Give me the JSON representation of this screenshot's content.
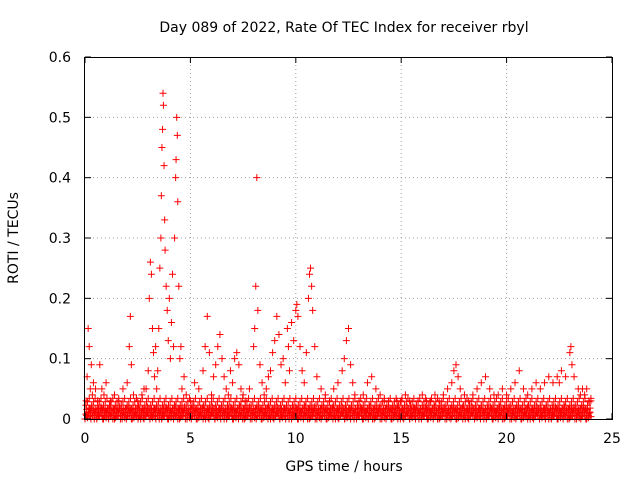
{
  "chart_data": {
    "type": "scatter",
    "title": "Day 089 of 2022, Rate Of TEC Index for receiver rbyl",
    "xlabel": "GPS time / hours",
    "ylabel": "ROTI / TECUs",
    "xlim": [
      0,
      25
    ],
    "ylim": [
      0,
      0.6
    ],
    "xticks": [
      "0",
      "5",
      "10",
      "15",
      "20",
      "25"
    ],
    "yticks": [
      "0",
      "0.1",
      "0.2",
      "0.3",
      "0.4",
      "0.5",
      "0.6"
    ],
    "grid": true,
    "marker": "+",
    "color": "#ff0000",
    "series": [
      {
        "name": "ROTI",
        "points": [
          [
            0.05,
            0.03
          ],
          [
            0.1,
            0.07
          ],
          [
            0.15,
            0.15
          ],
          [
            0.2,
            0.12
          ],
          [
            0.25,
            0.05
          ],
          [
            0.3,
            0.09
          ],
          [
            0.35,
            0.04
          ],
          [
            0.4,
            0.06
          ],
          [
            0.5,
            0.05
          ],
          [
            0.6,
            0.03
          ],
          [
            0.7,
            0.09
          ],
          [
            0.8,
            0.05
          ],
          [
            0.9,
            0.04
          ],
          [
            1.0,
            0.06
          ],
          [
            1.2,
            0.03
          ],
          [
            1.4,
            0.04
          ],
          [
            1.6,
            0.03
          ],
          [
            1.8,
            0.05
          ],
          [
            2.0,
            0.06
          ],
          [
            2.1,
            0.12
          ],
          [
            2.15,
            0.17
          ],
          [
            2.2,
            0.09
          ],
          [
            2.3,
            0.04
          ],
          [
            2.5,
            0.03
          ],
          [
            2.7,
            0.04
          ],
          [
            2.8,
            0.05
          ],
          [
            2.9,
            0.05
          ],
          [
            3.0,
            0.08
          ],
          [
            3.05,
            0.2
          ],
          [
            3.1,
            0.26
          ],
          [
            3.15,
            0.24
          ],
          [
            3.2,
            0.15
          ],
          [
            3.25,
            0.11
          ],
          [
            3.3,
            0.07
          ],
          [
            3.35,
            0.12
          ],
          [
            3.4,
            0.05
          ],
          [
            3.45,
            0.08
          ],
          [
            3.5,
            0.15
          ],
          [
            3.55,
            0.25
          ],
          [
            3.6,
            0.3
          ],
          [
            3.62,
            0.37
          ],
          [
            3.65,
            0.45
          ],
          [
            3.68,
            0.48
          ],
          [
            3.7,
            0.54
          ],
          [
            3.72,
            0.52
          ],
          [
            3.75,
            0.42
          ],
          [
            3.78,
            0.33
          ],
          [
            3.8,
            0.28
          ],
          [
            3.85,
            0.22
          ],
          [
            3.9,
            0.18
          ],
          [
            3.95,
            0.13
          ],
          [
            4.0,
            0.2
          ],
          [
            4.05,
            0.1
          ],
          [
            4.1,
            0.16
          ],
          [
            4.15,
            0.24
          ],
          [
            4.2,
            0.12
          ],
          [
            4.25,
            0.3
          ],
          [
            4.3,
            0.4
          ],
          [
            4.32,
            0.43
          ],
          [
            4.35,
            0.5
          ],
          [
            4.38,
            0.47
          ],
          [
            4.4,
            0.36
          ],
          [
            4.45,
            0.22
          ],
          [
            4.5,
            0.1
          ],
          [
            4.55,
            0.12
          ],
          [
            4.6,
            0.05
          ],
          [
            4.7,
            0.07
          ],
          [
            4.8,
            0.04
          ],
          [
            5.0,
            0.03
          ],
          [
            5.2,
            0.06
          ],
          [
            5.4,
            0.05
          ],
          [
            5.6,
            0.08
          ],
          [
            5.7,
            0.12
          ],
          [
            5.8,
            0.17
          ],
          [
            5.9,
            0.11
          ],
          [
            6.0,
            0.04
          ],
          [
            6.1,
            0.07
          ],
          [
            6.2,
            0.09
          ],
          [
            6.3,
            0.12
          ],
          [
            6.4,
            0.14
          ],
          [
            6.5,
            0.1
          ],
          [
            6.6,
            0.07
          ],
          [
            6.7,
            0.05
          ],
          [
            6.8,
            0.04
          ],
          [
            6.9,
            0.08
          ],
          [
            7.0,
            0.06
          ],
          [
            7.1,
            0.1
          ],
          [
            7.2,
            0.11
          ],
          [
            7.3,
            0.09
          ],
          [
            7.4,
            0.05
          ],
          [
            7.5,
            0.04
          ],
          [
            7.6,
            0.03
          ],
          [
            7.8,
            0.05
          ],
          [
            8.0,
            0.12
          ],
          [
            8.05,
            0.15
          ],
          [
            8.1,
            0.22
          ],
          [
            8.15,
            0.4
          ],
          [
            8.2,
            0.18
          ],
          [
            8.3,
            0.09
          ],
          [
            8.4,
            0.06
          ],
          [
            8.5,
            0.04
          ],
          [
            8.6,
            0.05
          ],
          [
            8.7,
            0.07
          ],
          [
            8.8,
            0.08
          ],
          [
            8.9,
            0.11
          ],
          [
            9.0,
            0.13
          ],
          [
            9.1,
            0.17
          ],
          [
            9.2,
            0.14
          ],
          [
            9.3,
            0.09
          ],
          [
            9.4,
            0.1
          ],
          [
            9.5,
            0.06
          ],
          [
            9.6,
            0.15
          ],
          [
            9.65,
            0.12
          ],
          [
            9.7,
            0.08
          ],
          [
            9.8,
            0.16
          ],
          [
            9.9,
            0.13
          ],
          [
            10.0,
            0.18
          ],
          [
            10.05,
            0.19
          ],
          [
            10.1,
            0.17
          ],
          [
            10.2,
            0.12
          ],
          [
            10.3,
            0.08
          ],
          [
            10.4,
            0.06
          ],
          [
            10.5,
            0.11
          ],
          [
            10.6,
            0.2
          ],
          [
            10.65,
            0.24
          ],
          [
            10.7,
            0.25
          ],
          [
            10.75,
            0.22
          ],
          [
            10.8,
            0.18
          ],
          [
            10.9,
            0.12
          ],
          [
            11.0,
            0.07
          ],
          [
            11.2,
            0.05
          ],
          [
            11.4,
            0.04
          ],
          [
            11.6,
            0.03
          ],
          [
            11.8,
            0.05
          ],
          [
            12.0,
            0.06
          ],
          [
            12.2,
            0.08
          ],
          [
            12.3,
            0.1
          ],
          [
            12.4,
            0.13
          ],
          [
            12.5,
            0.15
          ],
          [
            12.6,
            0.09
          ],
          [
            12.7,
            0.06
          ],
          [
            12.8,
            0.04
          ],
          [
            13.0,
            0.03
          ],
          [
            13.2,
            0.04
          ],
          [
            13.4,
            0.06
          ],
          [
            13.6,
            0.07
          ],
          [
            13.8,
            0.05
          ],
          [
            14.0,
            0.04
          ],
          [
            14.2,
            0.03
          ],
          [
            14.4,
            0.03
          ],
          [
            14.6,
            0.02
          ],
          [
            14.8,
            0.03
          ],
          [
            15.0,
            0.03
          ],
          [
            15.2,
            0.04
          ],
          [
            15.4,
            0.03
          ],
          [
            15.6,
            0.02
          ],
          [
            15.8,
            0.03
          ],
          [
            16.0,
            0.04
          ],
          [
            16.2,
            0.03
          ],
          [
            16.4,
            0.03
          ],
          [
            16.6,
            0.04
          ],
          [
            16.8,
            0.03
          ],
          [
            17.0,
            0.04
          ],
          [
            17.2,
            0.05
          ],
          [
            17.4,
            0.06
          ],
          [
            17.5,
            0.08
          ],
          [
            17.6,
            0.09
          ],
          [
            17.7,
            0.07
          ],
          [
            17.8,
            0.05
          ],
          [
            18.0,
            0.04
          ],
          [
            18.2,
            0.03
          ],
          [
            18.4,
            0.04
          ],
          [
            18.6,
            0.05
          ],
          [
            18.8,
            0.06
          ],
          [
            19.0,
            0.07
          ],
          [
            19.2,
            0.05
          ],
          [
            19.4,
            0.04
          ],
          [
            19.6,
            0.04
          ],
          [
            19.8,
            0.05
          ],
          [
            20.0,
            0.04
          ],
          [
            20.2,
            0.05
          ],
          [
            20.4,
            0.06
          ],
          [
            20.6,
            0.08
          ],
          [
            20.8,
            0.05
          ],
          [
            21.0,
            0.04
          ],
          [
            21.2,
            0.05
          ],
          [
            21.4,
            0.06
          ],
          [
            21.6,
            0.05
          ],
          [
            21.8,
            0.06
          ],
          [
            22.0,
            0.07
          ],
          [
            22.2,
            0.06
          ],
          [
            22.4,
            0.07
          ],
          [
            22.5,
            0.06
          ],
          [
            22.6,
            0.08
          ],
          [
            22.8,
            0.07
          ],
          [
            23.0,
            0.11
          ],
          [
            23.05,
            0.12
          ],
          [
            23.1,
            0.09
          ],
          [
            23.2,
            0.07
          ],
          [
            23.4,
            0.05
          ],
          [
            23.5,
            0.04
          ],
          [
            23.6,
            0.05
          ],
          [
            23.7,
            0.04
          ],
          [
            23.8,
            0.05
          ],
          [
            23.9,
            0.03
          ],
          [
            24.0,
            0.03
          ]
        ]
      }
    ],
    "baseline_band": {
      "description_values": [
        0.0,
        0.04
      ],
      "x_range": [
        0,
        24
      ]
    }
  }
}
